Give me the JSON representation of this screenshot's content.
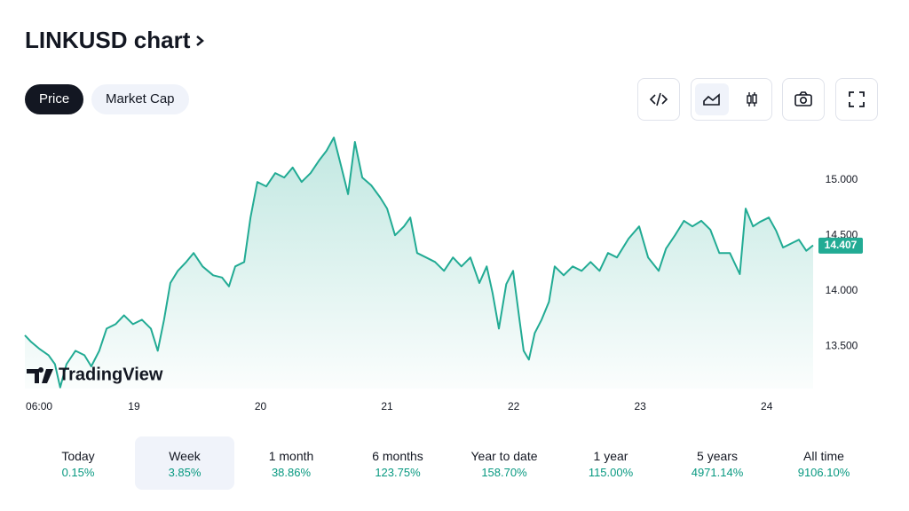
{
  "title": "LINKUSD chart",
  "tabs": [
    "Price",
    "Market Cap"
  ],
  "watermark": "TradingView",
  "periods": [
    {
      "name": "Today",
      "change": "0.15%"
    },
    {
      "name": "Week",
      "change": "3.85%"
    },
    {
      "name": "1 month",
      "change": "38.86%"
    },
    {
      "name": "6 months",
      "change": "123.75%"
    },
    {
      "name": "Year to date",
      "change": "158.70%"
    },
    {
      "name": "1 year",
      "change": "115.00%"
    },
    {
      "name": "5 years",
      "change": "4971.14%"
    },
    {
      "name": "All time",
      "change": "9106.10%"
    }
  ],
  "chart_data": {
    "type": "area",
    "color": "#22ab94",
    "xlim": [
      3.3,
      152.8
    ],
    "ylim": [
      13.12,
      15.42
    ],
    "xticks": [
      {
        "value": 6,
        "label": "06:00"
      },
      {
        "value": 24,
        "label": "19"
      },
      {
        "value": 48,
        "label": "20"
      },
      {
        "value": 72,
        "label": "21"
      },
      {
        "value": 96,
        "label": "22"
      },
      {
        "value": 120,
        "label": "23"
      },
      {
        "value": 144,
        "label": "24"
      }
    ],
    "yticks": [
      {
        "value": 13.5,
        "label": "13.500"
      },
      {
        "value": 14,
        "label": "14.000"
      },
      {
        "value": 14.5,
        "label": "14.500"
      },
      {
        "value": 15,
        "label": "15.000"
      }
    ],
    "last_price": {
      "value": 14.407,
      "label": "14.407"
    },
    "grid": false,
    "x": [
      3.3,
      4.5,
      6.0,
      7.8,
      9.0,
      10.0,
      11.2,
      12.9,
      14.6,
      15.9,
      17.4,
      18.8,
      20.5,
      22.1,
      23.8,
      25.5,
      27.2,
      28.5,
      29.7,
      30.9,
      32.3,
      33.9,
      35.3,
      37.0,
      39.0,
      40.7,
      42.0,
      43.2,
      44.9,
      46.1,
      47.4,
      49.1,
      50.8,
      52.5,
      54.1,
      55.8,
      57.5,
      59.2,
      60.5,
      61.9,
      63.4,
      64.6,
      65.9,
      67.3,
      69.0,
      70.7,
      72.0,
      73.5,
      75.2,
      76.4,
      77.7,
      79.4,
      81.1,
      82.8,
      84.5,
      86.1,
      87.8,
      89.5,
      90.9,
      92.0,
      93.2,
      94.6,
      95.9,
      97.1,
      97.9,
      98.9,
      100.0,
      101.3,
      102.7,
      103.8,
      105.5,
      107.2,
      108.9,
      110.6,
      112.3,
      113.9,
      115.6,
      117.8,
      119.8,
      121.5,
      123.5,
      124.9,
      126.6,
      128.3,
      129.9,
      131.6,
      133.3,
      135.0,
      137.0,
      138.9,
      140.0,
      141.4,
      142.7,
      144.4,
      145.8,
      147.1,
      148.8,
      150.1,
      151.5,
      152.8
    ],
    "values": [
      13.6,
      13.54,
      13.48,
      13.42,
      13.34,
      13.13,
      13.34,
      13.46,
      13.42,
      13.32,
      13.46,
      13.66,
      13.7,
      13.78,
      13.7,
      13.74,
      13.66,
      13.46,
      13.74,
      14.07,
      14.18,
      14.26,
      14.34,
      14.22,
      14.14,
      14.12,
      14.04,
      14.22,
      14.26,
      14.66,
      14.98,
      14.94,
      15.06,
      15.02,
      15.11,
      14.98,
      15.06,
      15.18,
      15.26,
      15.38,
      15.1,
      14.87,
      15.34,
      15.02,
      14.95,
      14.84,
      14.74,
      14.5,
      14.58,
      14.66,
      14.34,
      14.3,
      14.26,
      14.18,
      14.3,
      14.22,
      14.3,
      14.07,
      14.22,
      13.98,
      13.66,
      14.06,
      14.18,
      13.74,
      13.46,
      13.38,
      13.62,
      13.74,
      13.9,
      14.22,
      14.14,
      14.22,
      14.18,
      14.26,
      14.18,
      14.34,
      14.3,
      14.47,
      14.58,
      14.3,
      14.18,
      14.38,
      14.5,
      14.63,
      14.58,
      14.63,
      14.55,
      14.34,
      14.34,
      14.15,
      14.74,
      14.58,
      14.62,
      14.66,
      14.54,
      14.39,
      14.43,
      14.46,
      14.36,
      14.41
    ]
  }
}
